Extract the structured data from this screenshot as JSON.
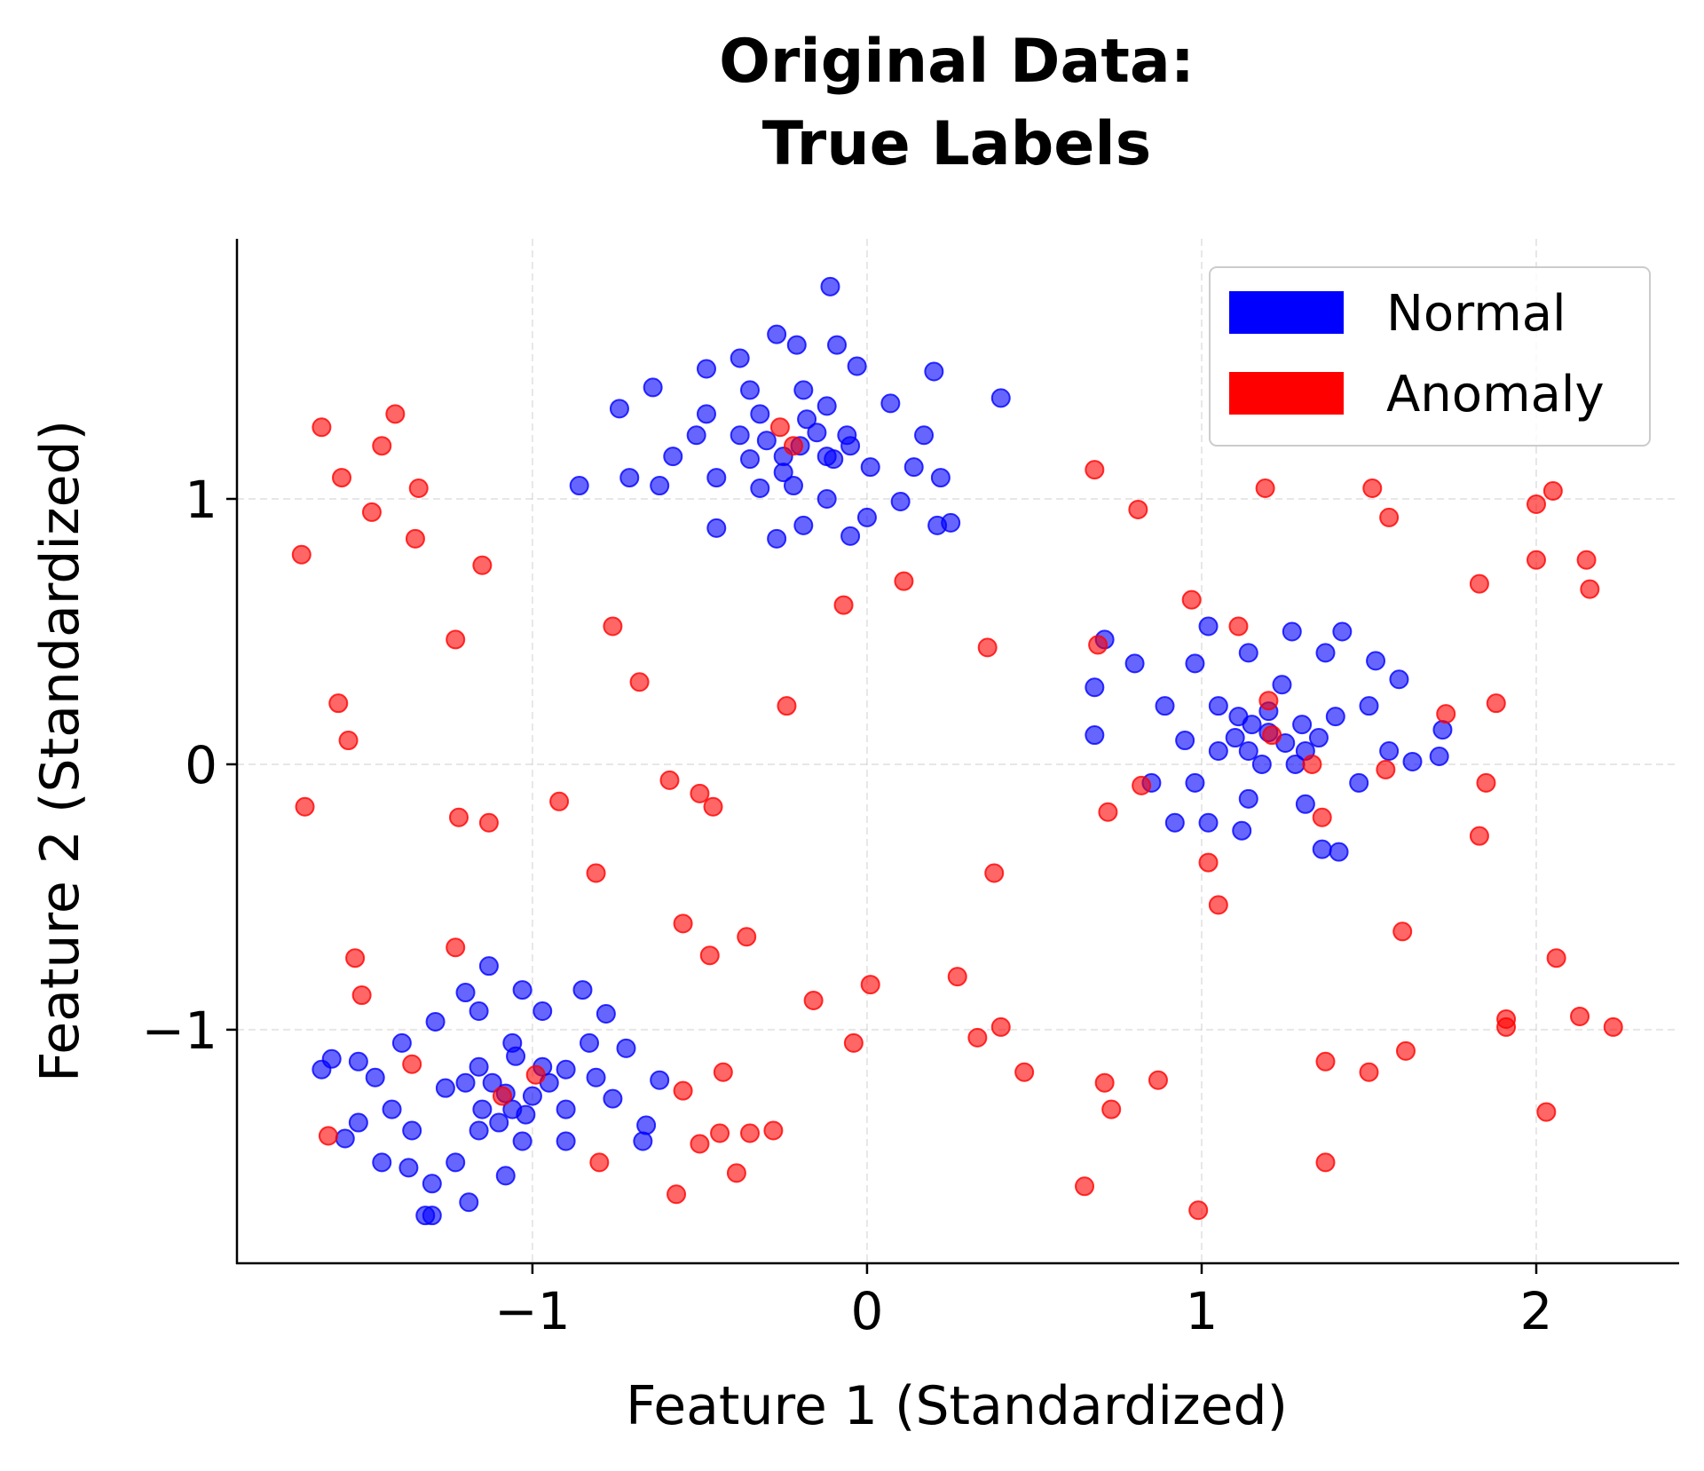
{
  "chart_data": {
    "type": "scatter",
    "title": [
      "Original Data:",
      "True Labels"
    ],
    "xlabel": "Feature 1 (Standardized)",
    "ylabel": "Feature 2 (Standardized)",
    "xlim": [
      -1.883,
      2.427
    ],
    "ylim": [
      -1.88,
      1.98
    ],
    "xticks": [
      {
        "value": -1,
        "label": "−1"
      },
      {
        "value": 0,
        "label": "0"
      },
      {
        "value": 1,
        "label": "1"
      },
      {
        "value": 2,
        "label": "2"
      }
    ],
    "yticks": [
      {
        "value": -1,
        "label": "−1"
      },
      {
        "value": 0,
        "label": "0"
      },
      {
        "value": 1,
        "label": "1"
      }
    ],
    "grid": true,
    "legend_position": "top-right",
    "series": [
      {
        "name": "Normal",
        "color": "#0000ff",
        "points": [
          [
            -0.11,
            1.8
          ],
          [
            -0.27,
            1.62
          ],
          [
            -0.74,
            1.34
          ],
          [
            -0.86,
            1.05
          ],
          [
            -0.71,
            1.08
          ],
          [
            -0.62,
            1.05
          ],
          [
            0.4,
            1.38
          ],
          [
            0.2,
            1.48
          ],
          [
            0.25,
            0.91
          ],
          [
            0.21,
            0.9
          ],
          [
            0.22,
            1.08
          ],
          [
            -0.27,
            0.85
          ],
          [
            -0.05,
            0.86
          ],
          [
            -0.45,
            0.89
          ],
          [
            -0.19,
            0.9
          ],
          [
            0.0,
            0.93
          ],
          [
            0.1,
            0.99
          ],
          [
            -0.09,
            1.58
          ],
          [
            -0.38,
            1.53
          ],
          [
            -0.21,
            1.58
          ],
          [
            -0.48,
            1.49
          ],
          [
            -0.64,
            1.42
          ],
          [
            -0.03,
            1.5
          ],
          [
            0.07,
            1.36
          ],
          [
            0.17,
            1.24
          ],
          [
            0.14,
            1.12
          ],
          [
            -0.51,
            1.24
          ],
          [
            -0.58,
            1.16
          ],
          [
            -0.45,
            1.08
          ],
          [
            -0.32,
            1.04
          ],
          [
            -0.12,
            1.0
          ],
          [
            -0.32,
            1.32
          ],
          [
            -0.19,
            1.41
          ],
          [
            -0.06,
            1.24
          ],
          [
            -0.25,
            1.16
          ],
          [
            -0.38,
            1.24
          ],
          [
            -0.12,
            1.16
          ],
          [
            0.01,
            1.12
          ],
          [
            -0.35,
            1.41
          ],
          [
            -0.48,
            1.32
          ],
          [
            -0.2,
            1.2
          ],
          [
            -0.15,
            1.25
          ],
          [
            -0.25,
            1.1
          ],
          [
            -0.1,
            1.15
          ],
          [
            -0.3,
            1.22
          ],
          [
            -0.18,
            1.3
          ],
          [
            -0.05,
            1.2
          ],
          [
            -0.35,
            1.15
          ],
          [
            -0.22,
            1.05
          ],
          [
            -0.12,
            1.35
          ],
          [
            0.71,
            0.47
          ],
          [
            0.68,
            0.29
          ],
          [
            0.68,
            0.11
          ],
          [
            0.8,
            0.38
          ],
          [
            1.02,
            0.52
          ],
          [
            1.27,
            0.5
          ],
          [
            1.42,
            0.5
          ],
          [
            1.52,
            0.39
          ],
          [
            1.59,
            0.32
          ],
          [
            1.72,
            0.13
          ],
          [
            1.71,
            0.03
          ],
          [
            1.63,
            0.01
          ],
          [
            0.92,
            -0.22
          ],
          [
            1.02,
            -0.22
          ],
          [
            1.12,
            -0.25
          ],
          [
            1.36,
            -0.32
          ],
          [
            1.41,
            -0.33
          ],
          [
            0.85,
            -0.07
          ],
          [
            0.89,
            0.22
          ],
          [
            0.98,
            0.38
          ],
          [
            1.14,
            0.42
          ],
          [
            1.37,
            0.42
          ],
          [
            1.5,
            0.22
          ],
          [
            1.56,
            0.05
          ],
          [
            1.47,
            -0.07
          ],
          [
            1.31,
            -0.15
          ],
          [
            1.14,
            -0.13
          ],
          [
            0.98,
            -0.07
          ],
          [
            0.95,
            0.09
          ],
          [
            1.05,
            0.22
          ],
          [
            1.24,
            0.3
          ],
          [
            1.4,
            0.18
          ],
          [
            1.31,
            0.05
          ],
          [
            1.14,
            0.05
          ],
          [
            1.11,
            0.18
          ],
          [
            1.2,
            0.12
          ],
          [
            1.15,
            0.15
          ],
          [
            1.25,
            0.08
          ],
          [
            1.1,
            0.1
          ],
          [
            1.3,
            0.15
          ],
          [
            1.2,
            0.2
          ],
          [
            1.18,
            0.0
          ],
          [
            1.28,
            0.0
          ],
          [
            1.05,
            0.05
          ],
          [
            1.35,
            0.1
          ],
          [
            -1.3,
            -1.7
          ],
          [
            -1.32,
            -1.7
          ],
          [
            -1.19,
            -1.65
          ],
          [
            -1.3,
            -1.58
          ],
          [
            -1.37,
            -1.52
          ],
          [
            -1.45,
            -1.5
          ],
          [
            -1.63,
            -1.15
          ],
          [
            -1.6,
            -1.11
          ],
          [
            -1.52,
            -1.12
          ],
          [
            -1.47,
            -1.18
          ],
          [
            -1.56,
            -1.41
          ],
          [
            -1.52,
            -1.35
          ],
          [
            -1.13,
            -0.76
          ],
          [
            -1.2,
            -0.86
          ],
          [
            -0.85,
            -0.85
          ],
          [
            -0.78,
            -0.94
          ],
          [
            -0.62,
            -1.19
          ],
          [
            -0.66,
            -1.36
          ],
          [
            -0.67,
            -1.42
          ],
          [
            -0.72,
            -1.07
          ],
          [
            -0.76,
            -1.26
          ],
          [
            -0.9,
            -1.42
          ],
          [
            -1.08,
            -1.55
          ],
          [
            -1.23,
            -1.5
          ],
          [
            -1.36,
            -1.38
          ],
          [
            -1.42,
            -1.3
          ],
          [
            -1.39,
            -1.05
          ],
          [
            -1.29,
            -0.97
          ],
          [
            -1.16,
            -0.93
          ],
          [
            -1.03,
            -0.85
          ],
          [
            -0.97,
            -0.93
          ],
          [
            -0.83,
            -1.05
          ],
          [
            -0.81,
            -1.18
          ],
          [
            -0.9,
            -1.3
          ],
          [
            -1.03,
            -1.42
          ],
          [
            -1.16,
            -1.38
          ],
          [
            -1.26,
            -1.22
          ],
          [
            -1.16,
            -1.14
          ],
          [
            -1.06,
            -1.05
          ],
          [
            -0.97,
            -1.14
          ],
          [
            -1.06,
            -1.3
          ],
          [
            -1.08,
            -1.24
          ],
          [
            -1.12,
            -1.2
          ],
          [
            -1.0,
            -1.25
          ],
          [
            -1.15,
            -1.3
          ],
          [
            -1.05,
            -1.1
          ],
          [
            -0.95,
            -1.2
          ],
          [
            -1.2,
            -1.2
          ],
          [
            -1.1,
            -1.35
          ],
          [
            -1.02,
            -1.32
          ],
          [
            -0.9,
            -1.15
          ]
        ]
      },
      {
        "name": "Anomaly",
        "color": "#ff0000",
        "points": [
          [
            -1.63,
            1.27
          ],
          [
            -1.41,
            1.32
          ],
          [
            -1.57,
            1.08
          ],
          [
            -1.45,
            1.2
          ],
          [
            -1.34,
            1.04
          ],
          [
            -1.48,
            0.95
          ],
          [
            -1.35,
            0.85
          ],
          [
            -1.69,
            0.79
          ],
          [
            -1.15,
            0.75
          ],
          [
            -1.23,
            0.47
          ],
          [
            -1.58,
            0.23
          ],
          [
            -1.55,
            0.09
          ],
          [
            -1.68,
            -0.16
          ],
          [
            -1.22,
            -0.2
          ],
          [
            -1.13,
            -0.22
          ],
          [
            -0.92,
            -0.14
          ],
          [
            -0.76,
            0.52
          ],
          [
            -0.68,
            0.31
          ],
          [
            -0.59,
            -0.06
          ],
          [
            -0.5,
            -0.11
          ],
          [
            -0.46,
            -0.16
          ],
          [
            -0.81,
            -0.41
          ],
          [
            -0.24,
            0.22
          ],
          [
            -0.07,
            0.6
          ],
          [
            0.11,
            0.69
          ],
          [
            -0.26,
            1.27
          ],
          [
            -0.22,
            1.2
          ],
          [
            0.36,
            0.44
          ],
          [
            0.68,
            1.11
          ],
          [
            0.81,
            0.96
          ],
          [
            1.19,
            1.04
          ],
          [
            1.51,
            1.04
          ],
          [
            1.56,
            0.93
          ],
          [
            0.97,
            0.62
          ],
          [
            1.11,
            0.52
          ],
          [
            0.69,
            0.45
          ],
          [
            1.2,
            0.24
          ],
          [
            1.21,
            0.11
          ],
          [
            1.33,
            0.0
          ],
          [
            1.55,
            -0.02
          ],
          [
            0.82,
            -0.08
          ],
          [
            0.72,
            -0.18
          ],
          [
            1.36,
            -0.2
          ],
          [
            1.73,
            0.19
          ],
          [
            1.88,
            0.23
          ],
          [
            1.83,
            0.68
          ],
          [
            2.0,
            0.98
          ],
          [
            2.05,
            1.03
          ],
          [
            2.0,
            0.77
          ],
          [
            2.15,
            0.77
          ],
          [
            2.16,
            0.66
          ],
          [
            1.85,
            -0.07
          ],
          [
            1.83,
            -0.27
          ],
          [
            1.02,
            -0.37
          ],
          [
            1.05,
            -0.53
          ],
          [
            0.38,
            -0.41
          ],
          [
            -0.55,
            -0.6
          ],
          [
            -0.36,
            -0.65
          ],
          [
            -0.47,
            -0.72
          ],
          [
            -1.53,
            -0.73
          ],
          [
            -1.51,
            -0.87
          ],
          [
            -1.23,
            -0.69
          ],
          [
            -0.16,
            -0.89
          ],
          [
            0.01,
            -0.83
          ],
          [
            0.27,
            -0.8
          ],
          [
            -0.04,
            -1.05
          ],
          [
            0.33,
            -1.03
          ],
          [
            0.4,
            -0.99
          ],
          [
            0.47,
            -1.16
          ],
          [
            -0.43,
            -1.16
          ],
          [
            -0.55,
            -1.23
          ],
          [
            0.71,
            -1.2
          ],
          [
            0.87,
            -1.19
          ],
          [
            0.73,
            -1.3
          ],
          [
            1.37,
            -1.12
          ],
          [
            1.5,
            -1.16
          ],
          [
            1.61,
            -1.08
          ],
          [
            1.6,
            -0.63
          ],
          [
            2.06,
            -0.73
          ],
          [
            1.91,
            -0.96
          ],
          [
            1.91,
            -0.99
          ],
          [
            2.13,
            -0.95
          ],
          [
            2.23,
            -0.99
          ],
          [
            2.03,
            -1.31
          ],
          [
            1.37,
            -1.5
          ],
          [
            0.65,
            -1.59
          ],
          [
            0.99,
            -1.68
          ],
          [
            -0.5,
            -1.43
          ],
          [
            -0.44,
            -1.39
          ],
          [
            -0.35,
            -1.39
          ],
          [
            -0.28,
            -1.38
          ],
          [
            -0.39,
            -1.54
          ],
          [
            -0.57,
            -1.62
          ],
          [
            -0.8,
            -1.5
          ],
          [
            -1.61,
            -1.4
          ],
          [
            -1.36,
            -1.13
          ],
          [
            -1.09,
            -1.25
          ],
          [
            -0.99,
            -1.17
          ]
        ]
      }
    ]
  }
}
